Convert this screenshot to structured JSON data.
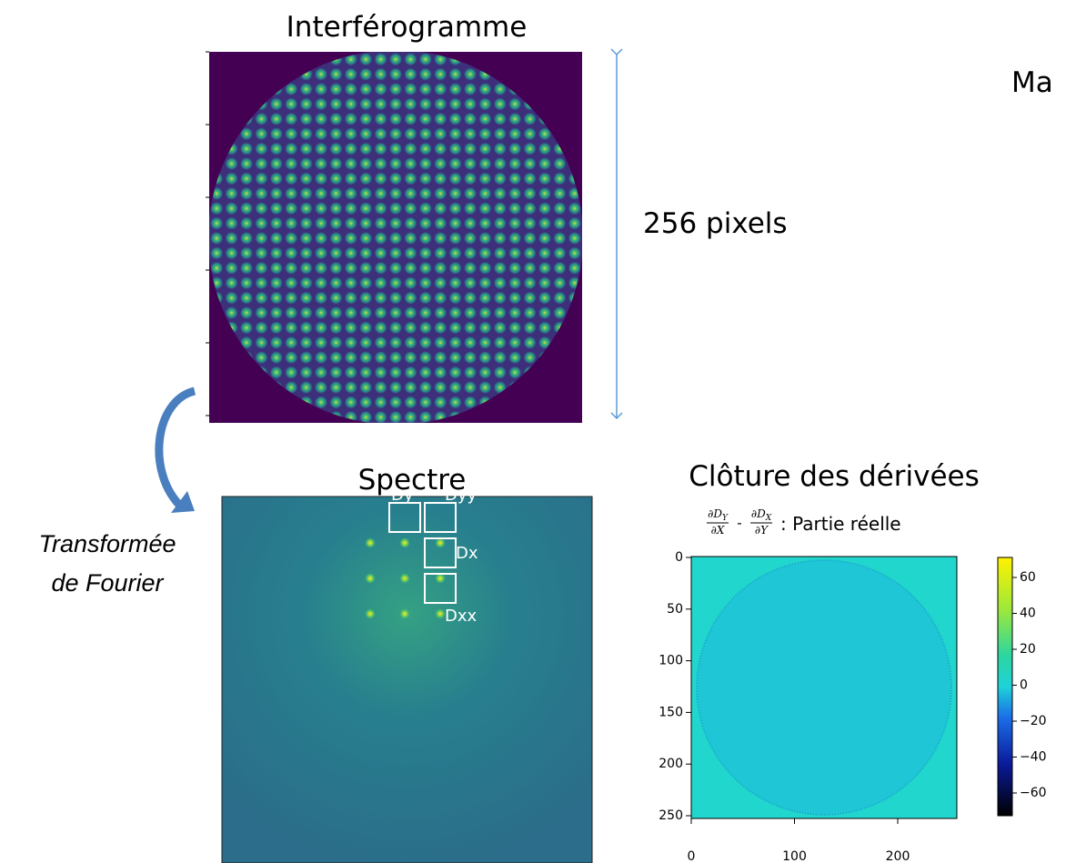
{
  "header": {
    "left_title": "Interférogramme",
    "right_title_cut": "Ma"
  },
  "dimension_label": "256 pixels",
  "transform_label": {
    "line1": "Transformée",
    "line2": "de Fourier"
  },
  "spectrum": {
    "title": "Spectre",
    "boxes": [
      "Dy",
      "Dyy",
      "Dx",
      "Dxx"
    ]
  },
  "closure": {
    "title": "Clôture des dérivées",
    "plot_title": {
      "term1": {
        "num": "∂D",
        "num_sub": "Y",
        "den": "∂X"
      },
      "operator": "-",
      "term2": {
        "num": "∂D",
        "num_sub": "X",
        "den": "∂Y"
      },
      "suffix": ": Partie réelle"
    },
    "y_ticks": [
      "0",
      "50",
      "100",
      "150",
      "200",
      "250"
    ],
    "x_ticks": [
      "0",
      "100",
      "200"
    ],
    "colorbar_ticks": [
      "60",
      "40",
      "20",
      "0",
      "−20",
      "−40",
      "−60"
    ]
  }
}
